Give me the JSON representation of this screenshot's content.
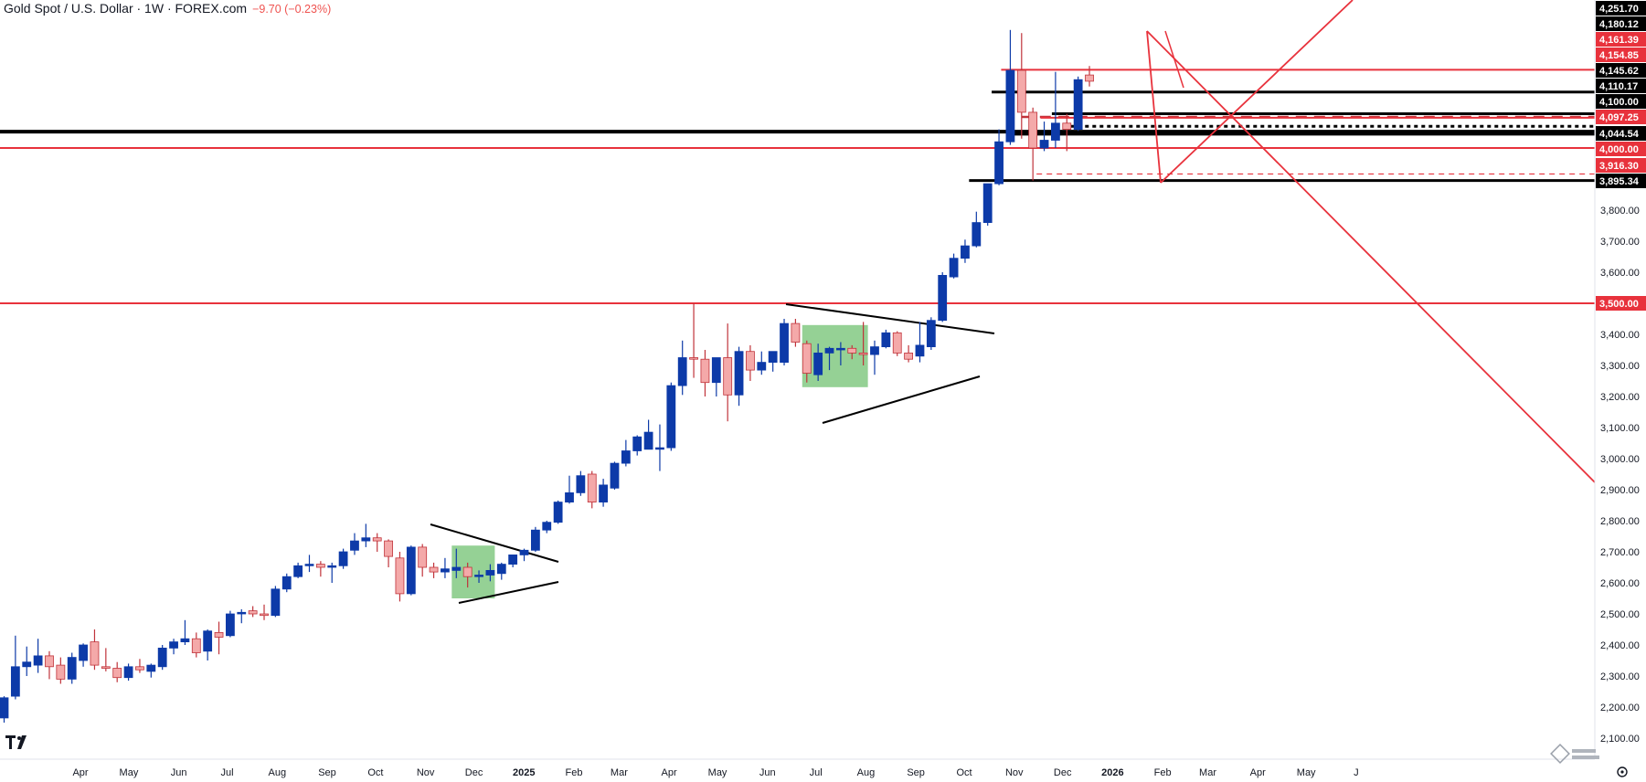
{
  "header": {
    "title": "Gold Spot / U.S. Dollar · 1W · FOREX.com",
    "change": "−9.70 (−0.23%)"
  },
  "colors": {
    "up": "#0d3aa8",
    "down": "#f4a9a9",
    "down_border": "#c0333a",
    "red_line": "#e8323c",
    "black_line": "#000000",
    "green_zone": "#5cb85c"
  },
  "icons": [
    "tradingview-logo-icon",
    "sino-sound-watermark-icon",
    "settings-icon"
  ],
  "chart_data": {
    "type": "candlestick",
    "title": "Gold Spot / U.S. Dollar · 1W · FOREX.com",
    "ylim": [
      2050,
      4260
    ],
    "y_ticks": [
      2100,
      2200,
      2300,
      2400,
      2500,
      2600,
      2700,
      2800,
      2900,
      3000,
      3100,
      3200,
      3300,
      3400,
      3500,
      3600,
      3700,
      3800
    ],
    "y_tick_labels": [
      "2,100.00",
      "2,200.00",
      "2,300.00",
      "2,400.00",
      "2,500.00",
      "2,600.00",
      "2,700.00",
      "2,800.00",
      "2,900.00",
      "3,000.00",
      "3,100.00",
      "3,200.00",
      "3,300.00",
      "3,400.00",
      "3,500.00",
      "3,600.00",
      "3,700.00",
      "3,800.00"
    ],
    "x_labels": [
      {
        "label": "Apr",
        "date": "2024-04-01"
      },
      {
        "label": "May",
        "date": "2024-05-01"
      },
      {
        "label": "Jun",
        "date": "2024-06-01"
      },
      {
        "label": "Jul",
        "date": "2024-07-01"
      },
      {
        "label": "Aug",
        "date": "2024-08-01"
      },
      {
        "label": "Sep",
        "date": "2024-09-01"
      },
      {
        "label": "Oct",
        "date": "2024-10-01"
      },
      {
        "label": "Nov",
        "date": "2024-11-01"
      },
      {
        "label": "Dec",
        "date": "2024-12-01"
      },
      {
        "label": "2025",
        "date": "2025-01-01",
        "bold": true
      },
      {
        "label": "Feb",
        "date": "2025-02-01"
      },
      {
        "label": "Mar",
        "date": "2025-03-01"
      },
      {
        "label": "Apr",
        "date": "2025-04-01"
      },
      {
        "label": "May",
        "date": "2025-05-01"
      },
      {
        "label": "Jun",
        "date": "2025-06-01"
      },
      {
        "label": "Jul",
        "date": "2025-07-01"
      },
      {
        "label": "Aug",
        "date": "2025-08-01"
      },
      {
        "label": "Sep",
        "date": "2025-09-01"
      },
      {
        "label": "Oct",
        "date": "2025-10-01"
      },
      {
        "label": "Nov",
        "date": "2025-11-01"
      },
      {
        "label": "Dec",
        "date": "2025-12-01"
      },
      {
        "label": "2026",
        "date": "2026-01-01",
        "bold": true
      },
      {
        "label": "Feb",
        "date": "2026-02-01"
      },
      {
        "label": "Mar",
        "date": "2026-03-01"
      },
      {
        "label": "Apr",
        "date": "2026-04-01"
      },
      {
        "label": "May",
        "date": "2026-05-01"
      },
      {
        "label": "J",
        "date": "2026-06-01"
      }
    ],
    "candles": [
      {
        "o": 2165,
        "h": 2235,
        "l": 2150,
        "c": 2230
      },
      {
        "o": 2235,
        "h": 2430,
        "l": 2225,
        "c": 2330
      },
      {
        "o": 2330,
        "h": 2395,
        "l": 2300,
        "c": 2345
      },
      {
        "o": 2335,
        "h": 2420,
        "l": 2310,
        "c": 2365
      },
      {
        "o": 2365,
        "h": 2380,
        "l": 2290,
        "c": 2330
      },
      {
        "o": 2335,
        "h": 2360,
        "l": 2275,
        "c": 2290
      },
      {
        "o": 2290,
        "h": 2375,
        "l": 2275,
        "c": 2360
      },
      {
        "o": 2350,
        "h": 2405,
        "l": 2330,
        "c": 2400
      },
      {
        "o": 2410,
        "h": 2450,
        "l": 2320,
        "c": 2335
      },
      {
        "o": 2330,
        "h": 2390,
        "l": 2315,
        "c": 2325
      },
      {
        "o": 2325,
        "h": 2345,
        "l": 2280,
        "c": 2295
      },
      {
        "o": 2295,
        "h": 2340,
        "l": 2285,
        "c": 2330
      },
      {
        "o": 2330,
        "h": 2355,
        "l": 2310,
        "c": 2320
      },
      {
        "o": 2315,
        "h": 2340,
        "l": 2295,
        "c": 2335
      },
      {
        "o": 2330,
        "h": 2400,
        "l": 2320,
        "c": 2390
      },
      {
        "o": 2390,
        "h": 2420,
        "l": 2370,
        "c": 2410
      },
      {
        "o": 2410,
        "h": 2480,
        "l": 2400,
        "c": 2420
      },
      {
        "o": 2420,
        "h": 2440,
        "l": 2360,
        "c": 2375
      },
      {
        "o": 2380,
        "h": 2450,
        "l": 2350,
        "c": 2445
      },
      {
        "o": 2440,
        "h": 2475,
        "l": 2370,
        "c": 2425
      },
      {
        "o": 2430,
        "h": 2510,
        "l": 2425,
        "c": 2500
      },
      {
        "o": 2500,
        "h": 2515,
        "l": 2470,
        "c": 2505
      },
      {
        "o": 2510,
        "h": 2525,
        "l": 2490,
        "c": 2500
      },
      {
        "o": 2500,
        "h": 2530,
        "l": 2480,
        "c": 2495
      },
      {
        "o": 2495,
        "h": 2590,
        "l": 2490,
        "c": 2580
      },
      {
        "o": 2580,
        "h": 2630,
        "l": 2570,
        "c": 2620
      },
      {
        "o": 2620,
        "h": 2665,
        "l": 2615,
        "c": 2655
      },
      {
        "o": 2655,
        "h": 2690,
        "l": 2635,
        "c": 2660
      },
      {
        "o": 2660,
        "h": 2670,
        "l": 2620,
        "c": 2650
      },
      {
        "o": 2650,
        "h": 2665,
        "l": 2600,
        "c": 2655
      },
      {
        "o": 2655,
        "h": 2710,
        "l": 2645,
        "c": 2700
      },
      {
        "o": 2705,
        "h": 2760,
        "l": 2690,
        "c": 2735
      },
      {
        "o": 2735,
        "h": 2790,
        "l": 2715,
        "c": 2745
      },
      {
        "o": 2745,
        "h": 2760,
        "l": 2700,
        "c": 2735
      },
      {
        "o": 2735,
        "h": 2740,
        "l": 2650,
        "c": 2685
      },
      {
        "o": 2680,
        "h": 2700,
        "l": 2540,
        "c": 2565
      },
      {
        "o": 2565,
        "h": 2720,
        "l": 2560,
        "c": 2715
      },
      {
        "o": 2715,
        "h": 2725,
        "l": 2620,
        "c": 2650
      },
      {
        "o": 2650,
        "h": 2665,
        "l": 2615,
        "c": 2635
      },
      {
        "o": 2635,
        "h": 2680,
        "l": 2615,
        "c": 2645
      },
      {
        "o": 2640,
        "h": 2710,
        "l": 2615,
        "c": 2650
      },
      {
        "o": 2650,
        "h": 2665,
        "l": 2585,
        "c": 2620
      },
      {
        "o": 2620,
        "h": 2640,
        "l": 2600,
        "c": 2625
      },
      {
        "o": 2625,
        "h": 2660,
        "l": 2605,
        "c": 2640
      },
      {
        "o": 2630,
        "h": 2665,
        "l": 2610,
        "c": 2660
      },
      {
        "o": 2660,
        "h": 2690,
        "l": 2650,
        "c": 2690
      },
      {
        "o": 2690,
        "h": 2710,
        "l": 2670,
        "c": 2705
      },
      {
        "o": 2705,
        "h": 2780,
        "l": 2700,
        "c": 2770
      },
      {
        "o": 2770,
        "h": 2800,
        "l": 2760,
        "c": 2795
      },
      {
        "o": 2795,
        "h": 2865,
        "l": 2790,
        "c": 2860
      },
      {
        "o": 2860,
        "h": 2945,
        "l": 2855,
        "c": 2890
      },
      {
        "o": 2890,
        "h": 2960,
        "l": 2880,
        "c": 2945
      },
      {
        "o": 2950,
        "h": 2960,
        "l": 2840,
        "c": 2860
      },
      {
        "o": 2860,
        "h": 2935,
        "l": 2845,
        "c": 2915
      },
      {
        "o": 2905,
        "h": 2990,
        "l": 2900,
        "c": 2985
      },
      {
        "o": 2985,
        "h": 3060,
        "l": 2975,
        "c": 3025
      },
      {
        "o": 3025,
        "h": 3075,
        "l": 3010,
        "c": 3070
      },
      {
        "o": 3030,
        "h": 3125,
        "l": 3030,
        "c": 3085
      },
      {
        "o": 3030,
        "h": 3110,
        "l": 2960,
        "c": 3035
      },
      {
        "o": 3035,
        "h": 3245,
        "l": 3025,
        "c": 3235
      },
      {
        "o": 3235,
        "h": 3380,
        "l": 3205,
        "c": 3325
      },
      {
        "o": 3325,
        "h": 3500,
        "l": 3260,
        "c": 3320
      },
      {
        "o": 3320,
        "h": 3350,
        "l": 3200,
        "c": 3245
      },
      {
        "o": 3245,
        "h": 3325,
        "l": 3200,
        "c": 3325
      },
      {
        "o": 3325,
        "h": 3435,
        "l": 3120,
        "c": 3205
      },
      {
        "o": 3205,
        "h": 3360,
        "l": 3170,
        "c": 3345
      },
      {
        "o": 3345,
        "h": 3365,
        "l": 3250,
        "c": 3285
      },
      {
        "o": 3285,
        "h": 3345,
        "l": 3270,
        "c": 3310
      },
      {
        "o": 3310,
        "h": 3330,
        "l": 3280,
        "c": 3345
      },
      {
        "o": 3310,
        "h": 3450,
        "l": 3300,
        "c": 3435
      },
      {
        "o": 3435,
        "h": 3450,
        "l": 3360,
        "c": 3375
      },
      {
        "o": 3370,
        "h": 3380,
        "l": 3245,
        "c": 3275
      },
      {
        "o": 3270,
        "h": 3370,
        "l": 3250,
        "c": 3340
      },
      {
        "o": 3340,
        "h": 3360,
        "l": 3285,
        "c": 3355
      },
      {
        "o": 3350,
        "h": 3375,
        "l": 3300,
        "c": 3355
      },
      {
        "o": 3355,
        "h": 3365,
        "l": 3320,
        "c": 3340
      },
      {
        "o": 3340,
        "h": 3440,
        "l": 3300,
        "c": 3335
      },
      {
        "o": 3335,
        "h": 3380,
        "l": 3270,
        "c": 3360
      },
      {
        "o": 3360,
        "h": 3415,
        "l": 3355,
        "c": 3405
      },
      {
        "o": 3405,
        "h": 3410,
        "l": 3330,
        "c": 3340
      },
      {
        "o": 3340,
        "h": 3365,
        "l": 3310,
        "c": 3320
      },
      {
        "o": 3330,
        "h": 3440,
        "l": 3310,
        "c": 3365
      },
      {
        "o": 3360,
        "h": 3455,
        "l": 3350,
        "c": 3445
      },
      {
        "o": 3445,
        "h": 3600,
        "l": 3440,
        "c": 3590
      },
      {
        "o": 3585,
        "h": 3660,
        "l": 3580,
        "c": 3645
      },
      {
        "o": 3645,
        "h": 3705,
        "l": 3630,
        "c": 3685
      },
      {
        "o": 3685,
        "h": 3795,
        "l": 3680,
        "c": 3760
      },
      {
        "o": 3760,
        "h": 3885,
        "l": 3750,
        "c": 3885
      },
      {
        "o": 3885,
        "h": 4060,
        "l": 3880,
        "c": 4020
      },
      {
        "o": 4020,
        "h": 4380,
        "l": 4010,
        "c": 4250
      },
      {
        "o": 4250,
        "h": 4370,
        "l": 4030,
        "c": 4115
      },
      {
        "o": 4115,
        "h": 4130,
        "l": 3895,
        "c": 4000
      },
      {
        "o": 4000,
        "h": 4085,
        "l": 3990,
        "c": 4025
      },
      {
        "o": 4025,
        "h": 4245,
        "l": 4000,
        "c": 4080
      },
      {
        "o": 4080,
        "h": 4110,
        "l": 3990,
        "c": 4060
      },
      {
        "o": 4060,
        "h": 4230,
        "l": 4055,
        "c": 4220
      },
      {
        "o": 4235,
        "h": 4264,
        "l": 4198,
        "c": 4215
      }
    ],
    "horizontal_levels": [
      {
        "value": 4251.7,
        "label": "4,251.70",
        "color": "black"
      },
      {
        "value": 4180.12,
        "label": "4,180.12",
        "color": "black"
      },
      {
        "value": 4161.39,
        "label": "4,161.39",
        "color": "red"
      },
      {
        "value": 4154.85,
        "label": "4,154.85",
        "color": "red"
      },
      {
        "value": 4145.62,
        "label": "4,145.62",
        "color": "black"
      },
      {
        "value": 4110.17,
        "label": "4,110.17",
        "color": "black"
      },
      {
        "value": 4100.0,
        "label": "4,100.00",
        "color": "black"
      },
      {
        "value": 4097.25,
        "label": "4,097.25",
        "color": "red"
      },
      {
        "value": 4044.54,
        "label": "4,044.54",
        "color": "black"
      },
      {
        "value": 4000.0,
        "label": "4,000.00",
        "color": "red"
      },
      {
        "value": 3916.3,
        "label": "3,916.30",
        "color": "red"
      },
      {
        "value": 3895.34,
        "label": "3,895.34",
        "color": "black"
      },
      {
        "value": 3500.0,
        "label": "3,500.00",
        "color": "red"
      }
    ]
  }
}
